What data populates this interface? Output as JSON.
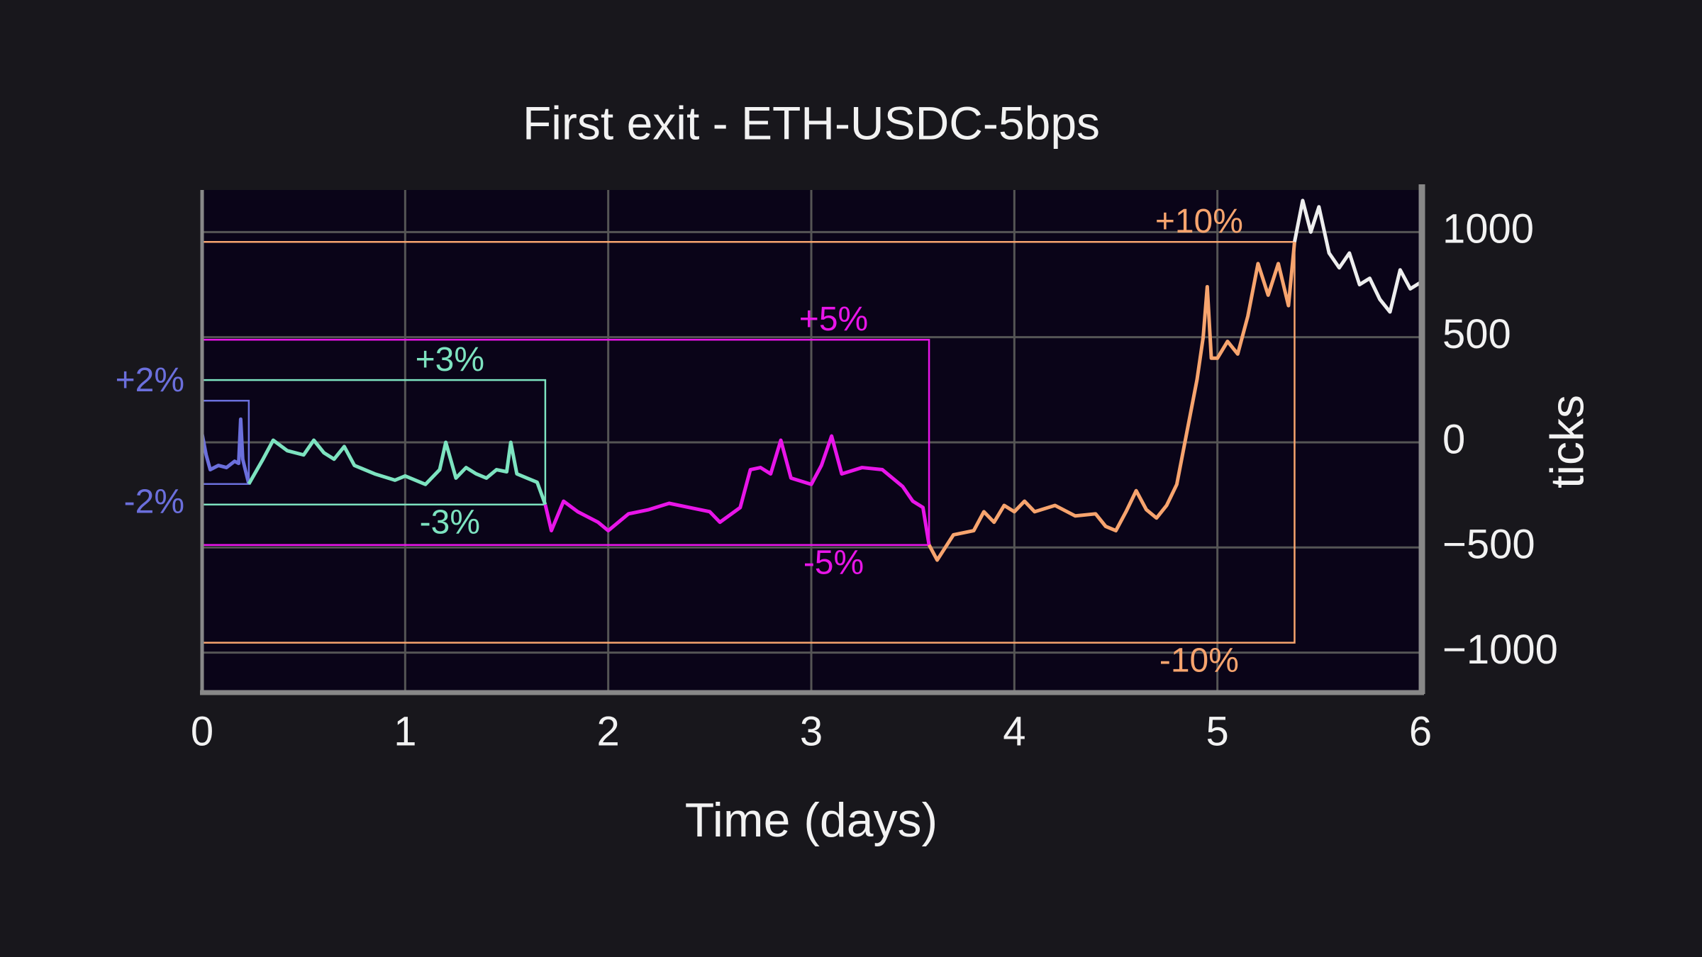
{
  "chart_data": {
    "type": "line",
    "title": "First exit - ETH-USDC-5bps",
    "x_label": "Time (days)",
    "y_label": "ticks",
    "xlim": [
      0,
      6
    ],
    "xticks": [
      0,
      1,
      2,
      3,
      4,
      5,
      6
    ],
    "ylim": [
      -1180,
      1200
    ],
    "yticks": [
      {
        "value": -1000,
        "label": "−1000"
      },
      {
        "value": -500,
        "label": "−500"
      },
      0,
      500,
      1000
    ],
    "grid": true,
    "series": [
      {
        "color": "#6b6fdc",
        "x": [
          0,
          0.02,
          0.04,
          0.08,
          0.12,
          0.16,
          0.18,
          0.19,
          0.2,
          0.21,
          0.23
        ],
        "values": [
          40,
          -60,
          -130,
          -110,
          -120,
          -90,
          -100,
          110,
          -80,
          -120,
          -198
        ]
      },
      {
        "color": "#7de3c0",
        "x": [
          0.23,
          0.3,
          0.35,
          0.42,
          0.5,
          0.55,
          0.6,
          0.65,
          0.7,
          0.75,
          0.85,
          0.95,
          1.0,
          1.1,
          1.17,
          1.2,
          1.25,
          1.3,
          1.35,
          1.4,
          1.45,
          1.5,
          1.52,
          1.55,
          1.6,
          1.65,
          1.69
        ],
        "values": [
          -198,
          -80,
          10,
          -40,
          -60,
          10,
          -50,
          -80,
          -20,
          -110,
          -150,
          -180,
          -160,
          -200,
          -130,
          0,
          -170,
          -120,
          -150,
          -170,
          -130,
          -140,
          0,
          -150,
          -170,
          -190,
          -296
        ]
      },
      {
        "color": "#e815e8",
        "x": [
          1.69,
          1.72,
          1.78,
          1.85,
          1.95,
          2.0,
          2.1,
          2.2,
          2.3,
          2.4,
          2.5,
          2.55,
          2.65,
          2.7,
          2.75,
          2.8,
          2.85,
          2.9,
          3.0,
          3.05,
          3.1,
          3.15,
          3.25,
          3.35,
          3.45,
          3.5,
          3.55,
          3.58
        ],
        "values": [
          -296,
          -420,
          -280,
          -330,
          -380,
          -420,
          -340,
          -320,
          -290,
          -310,
          -330,
          -380,
          -310,
          -130,
          -120,
          -150,
          10,
          -170,
          -200,
          -110,
          30,
          -150,
          -120,
          -130,
          -210,
          -280,
          -310,
          -488
        ]
      },
      {
        "color": "#f7a46e",
        "x": [
          3.58,
          3.62,
          3.7,
          3.8,
          3.85,
          3.9,
          3.95,
          4.0,
          4.05,
          4.1,
          4.2,
          4.3,
          4.4,
          4.45,
          4.5,
          4.55,
          4.6,
          4.65,
          4.7,
          4.75,
          4.8,
          4.85,
          4.9,
          4.93,
          4.95,
          4.97,
          5.0,
          5.05,
          5.1,
          5.15,
          5.2,
          5.25,
          5.3,
          5.35,
          5.38
        ],
        "values": [
          -488,
          -560,
          -440,
          -420,
          -330,
          -380,
          -300,
          -330,
          -280,
          -330,
          -300,
          -350,
          -340,
          -400,
          -420,
          -330,
          -230,
          -320,
          -360,
          -300,
          -200,
          50,
          300,
          500,
          740,
          400,
          400,
          480,
          420,
          600,
          850,
          700,
          850,
          650,
          953
        ]
      },
      {
        "color": "#eeeeee",
        "x": [
          5.38,
          5.42,
          5.46,
          5.5,
          5.55,
          5.6,
          5.65,
          5.7,
          5.75,
          5.8,
          5.85,
          5.9,
          5.95,
          6.0
        ],
        "values": [
          953,
          1150,
          1000,
          1120,
          900,
          830,
          900,
          750,
          780,
          680,
          620,
          820,
          730,
          760
        ]
      }
    ],
    "bands": [
      {
        "upper_label": "+2%",
        "lower_label": "-2%",
        "upper": 198,
        "lower": -198,
        "end": 0.23,
        "color": "#6b6fdc"
      },
      {
        "upper_label": "+3%",
        "lower_label": "-3%",
        "upper": 296,
        "lower": -296,
        "end": 1.69,
        "color": "#7de3c0"
      },
      {
        "upper_label": "+5%",
        "lower_label": "-5%",
        "upper": 488,
        "lower": -488,
        "end": 3.58,
        "color": "#e815e8"
      },
      {
        "upper_label": "+10%",
        "lower_label": "-10%",
        "upper": 953,
        "lower": -953,
        "end": 5.38,
        "color": "#f7a46e"
      }
    ]
  }
}
